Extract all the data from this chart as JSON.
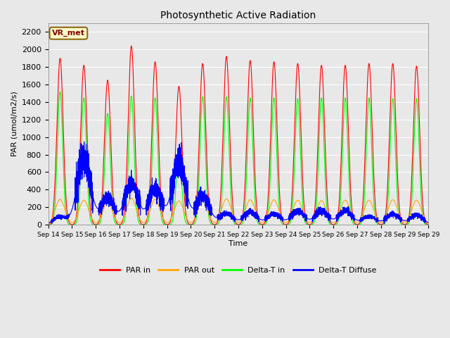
{
  "title": "Photosynthetic Active Radiation",
  "ylabel": "PAR (umol/m2/s)",
  "xlabel": "Time",
  "site_label": "VR_met",
  "ylim": [
    0,
    2300
  ],
  "background_color": "#e8e8e8",
  "plot_bg_color": "#e8e8e8",
  "colors": {
    "PAR in": "red",
    "PAR out": "orange",
    "Delta-T in": "lime",
    "Delta-T Diffuse": "blue"
  },
  "x_tick_labels": [
    "Sep 14",
    "Sep 15",
    "Sep 16",
    "Sep 17",
    "Sep 18",
    "Sep 19",
    "Sep 20",
    "Sep 21",
    "Sep 22",
    "Sep 23",
    "Sep 24",
    "Sep 25",
    "Sep 26",
    "Sep 27",
    "Sep 28",
    "Sep 29"
  ],
  "days": 16,
  "day_peaks": {
    "PAR_in": [
      1900,
      1820,
      1650,
      2040,
      1860,
      1580,
      1840,
      1920,
      1875,
      1860,
      1840,
      1820,
      1820,
      1840,
      1840,
      1810
    ],
    "PAR_out": [
      290,
      280,
      260,
      300,
      290,
      270,
      290,
      295,
      285,
      285,
      280,
      275,
      280,
      280,
      285,
      280
    ],
    "DeltaT_in": [
      1520,
      1450,
      1270,
      1470,
      1450,
      860,
      1460,
      1460,
      1450,
      1450,
      1440,
      1450,
      1450,
      1450,
      1440,
      1440
    ],
    "DeltaT_diff": [
      90,
      760,
      300,
      480,
      410,
      720,
      330,
      130,
      145,
      125,
      155,
      155,
      165,
      95,
      120,
      110
    ]
  }
}
